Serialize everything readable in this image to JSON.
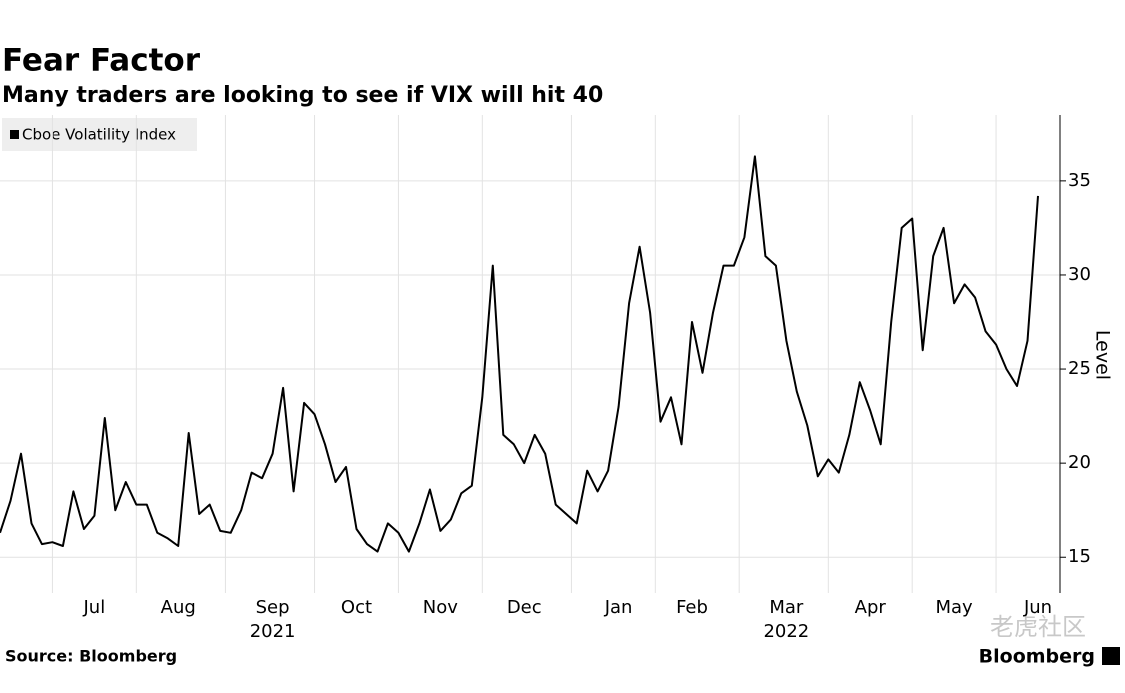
{
  "chart_data": {
    "type": "line",
    "title": "Fear Factor",
    "subtitle": "Many traders are looking to see if VIX will hit 40",
    "y_label": "Level",
    "source": "Source: Bloomberg",
    "brand": "Bloomberg",
    "watermark": "老虎社区",
    "categories": [
      null,
      null,
      null,
      null,
      null,
      null,
      null,
      null,
      null,
      "Jul",
      null,
      null,
      null,
      null,
      null,
      null,
      null,
      "Aug",
      null,
      null,
      null,
      null,
      null,
      null,
      null,
      null,
      "Sep",
      null,
      null,
      null,
      null,
      null,
      null,
      null,
      "Oct",
      null,
      null,
      null,
      null,
      null,
      null,
      null,
      "Nov",
      null,
      null,
      null,
      null,
      null,
      null,
      null,
      "Dec",
      null,
      null,
      null,
      null,
      null,
      null,
      null,
      null,
      "Jan",
      null,
      null,
      null,
      null,
      null,
      null,
      "Feb",
      null,
      null,
      null,
      null,
      null,
      null,
      null,
      null,
      "Mar",
      null,
      null,
      null,
      null,
      null,
      null,
      null,
      "Apr",
      null,
      null,
      null,
      null,
      null,
      null,
      null,
      "May",
      null,
      null,
      null,
      null,
      null,
      null,
      null,
      "Jun"
    ],
    "year_labels": [
      {
        "text": "2021",
        "under": "Sep"
      },
      {
        "text": "2022",
        "under": "Mar"
      }
    ],
    "series": [
      {
        "name": "Cboe Volatility Index",
        "color": "#000000",
        "values": [
          16.3,
          18.0,
          20.5,
          16.8,
          15.7,
          15.8,
          15.6,
          18.5,
          16.5,
          17.2,
          22.4,
          17.5,
          19.0,
          17.8,
          17.8,
          16.3,
          16.0,
          15.6,
          21.6,
          17.3,
          17.8,
          16.4,
          16.3,
          17.5,
          19.5,
          19.2,
          20.5,
          24.0,
          18.5,
          23.2,
          22.6,
          21.0,
          19.0,
          19.8,
          16.5,
          15.7,
          15.3,
          16.8,
          16.3,
          15.3,
          16.8,
          18.6,
          16.4,
          17.0,
          18.4,
          18.8,
          23.5,
          30.5,
          21.5,
          21.0,
          20.0,
          21.5,
          20.5,
          17.8,
          17.3,
          16.8,
          19.6,
          18.5,
          19.6,
          23.0,
          28.5,
          31.5,
          28.0,
          22.2,
          23.5,
          21.0,
          27.5,
          24.8,
          28.0,
          30.5,
          30.5,
          32.0,
          36.3,
          31.0,
          30.5,
          26.5,
          23.8,
          22.0,
          19.3,
          20.2,
          19.5,
          21.5,
          24.3,
          22.8,
          21.0,
          27.5,
          32.5,
          33.0,
          26.0,
          31.0,
          32.5,
          28.5,
          29.5,
          28.8,
          27.0,
          26.3,
          25.0,
          24.1,
          26.5,
          34.2
        ]
      }
    ],
    "ylim": [
      13.1,
      38.5
    ],
    "yticks": [
      15,
      20,
      25,
      30,
      35
    ],
    "grid": true
  }
}
